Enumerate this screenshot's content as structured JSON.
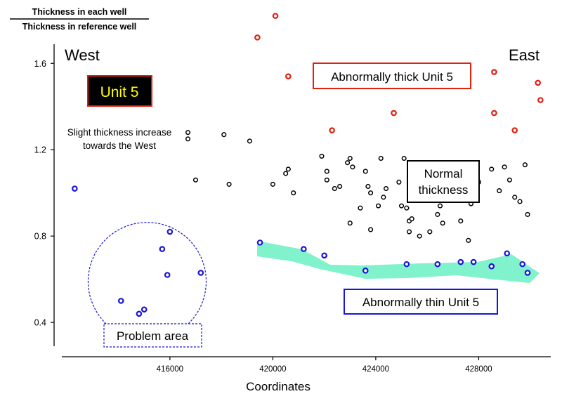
{
  "chart_data": {
    "type": "scatter",
    "ylabel_top": "Thickness in each well",
    "ylabel_bottom": "Thickness in reference well",
    "xlabel": "Coordinates",
    "xlim": [
      411800,
      430800
    ],
    "ylim": [
      0.28,
      1.77
    ],
    "xticks": [
      416000,
      420000,
      424000,
      428000
    ],
    "xtick_labels": [
      "416000",
      "420000",
      "424000",
      "428000"
    ],
    "yticks": [
      0.4,
      0.8,
      1.2,
      1.6
    ],
    "ytick_labels": [
      "0.4",
      "0.8",
      "1.2",
      "1.6"
    ],
    "grid": false,
    "direction_labels": {
      "west": "West",
      "east": "East"
    },
    "unit_label": "Unit 5",
    "annotations": {
      "thick_box": "Abnormally thick Unit 5",
      "normal_line1": "Normal",
      "normal_line2": "thickness",
      "thin_box": "Abnormally thin Unit 5",
      "slight_line1": "Slight thickness increase",
      "slight_line2": "towards the West",
      "problem_area": "Problem area"
    },
    "colors": {
      "thick": "#e02010",
      "normal": "#000000",
      "thin": "#1a14d8",
      "thin_band": "#80f2cc",
      "unit_box_bg": "#000000",
      "unit_box_text": "#ffff00",
      "unit_box_border": "#e02010"
    },
    "series": [
      {
        "key": "thick",
        "points": [
          [
            419400,
            1.72
          ],
          [
            420100,
            1.82
          ],
          [
            420600,
            1.54
          ],
          [
            422300,
            1.29
          ],
          [
            424700,
            1.37
          ],
          [
            428600,
            1.56
          ],
          [
            428600,
            1.37
          ],
          [
            429400,
            1.29
          ],
          [
            430300,
            1.51
          ],
          [
            430400,
            1.43
          ]
        ]
      },
      {
        "key": "normal",
        "points": [
          [
            416700,
            1.28
          ],
          [
            416700,
            1.25
          ],
          [
            417000,
            1.06
          ],
          [
            418100,
            1.27
          ],
          [
            418300,
            1.04
          ],
          [
            419100,
            1.24
          ],
          [
            420000,
            1.04
          ],
          [
            420500,
            1.09
          ],
          [
            420600,
            1.11
          ],
          [
            420800,
            1.0
          ],
          [
            421900,
            1.17
          ],
          [
            422100,
            1.1
          ],
          [
            422100,
            1.06
          ],
          [
            422400,
            1.02
          ],
          [
            422600,
            1.03
          ],
          [
            422900,
            1.14
          ],
          [
            423000,
            1.16
          ],
          [
            423100,
            1.12
          ],
          [
            423000,
            0.86
          ],
          [
            423400,
            0.93
          ],
          [
            423600,
            1.1
          ],
          [
            423700,
            1.03
          ],
          [
            423800,
            1.0
          ],
          [
            423800,
            0.83
          ],
          [
            424100,
            0.94
          ],
          [
            424200,
            1.16
          ],
          [
            424300,
            0.98
          ],
          [
            424400,
            1.02
          ],
          [
            424900,
            1.05
          ],
          [
            425000,
            0.94
          ],
          [
            425100,
            1.16
          ],
          [
            425200,
            0.93
          ],
          [
            425300,
            0.87
          ],
          [
            425300,
            0.82
          ],
          [
            425400,
            0.88
          ],
          [
            425700,
            0.8
          ],
          [
            425800,
            1.1
          ],
          [
            426100,
            0.82
          ],
          [
            426300,
            1.08
          ],
          [
            426400,
            0.9
          ],
          [
            426500,
            0.94
          ],
          [
            426500,
            1.02
          ],
          [
            426600,
            0.86
          ],
          [
            427300,
            0.87
          ],
          [
            427600,
            0.78
          ],
          [
            427700,
            0.95
          ],
          [
            428000,
            1.05
          ],
          [
            428500,
            1.11
          ],
          [
            428800,
            1.01
          ],
          [
            429000,
            1.12
          ],
          [
            429200,
            1.06
          ],
          [
            429400,
            0.98
          ],
          [
            429600,
            0.96
          ],
          [
            429800,
            1.13
          ],
          [
            429900,
            0.9
          ]
        ]
      },
      {
        "key": "thin",
        "points": [
          [
            412300,
            1.02
          ],
          [
            414100,
            0.5
          ],
          [
            414800,
            0.44
          ],
          [
            415000,
            0.46
          ],
          [
            415700,
            0.74
          ],
          [
            415900,
            0.62
          ],
          [
            416000,
            0.82
          ],
          [
            417200,
            0.63
          ],
          [
            419500,
            0.77
          ],
          [
            421200,
            0.74
          ],
          [
            422000,
            0.71
          ],
          [
            423600,
            0.64
          ],
          [
            425200,
            0.67
          ],
          [
            426400,
            0.67
          ],
          [
            427300,
            0.68
          ],
          [
            427800,
            0.68
          ],
          [
            428500,
            0.66
          ],
          [
            429100,
            0.72
          ],
          [
            429700,
            0.67
          ],
          [
            429900,
            0.63
          ]
        ]
      }
    ]
  }
}
